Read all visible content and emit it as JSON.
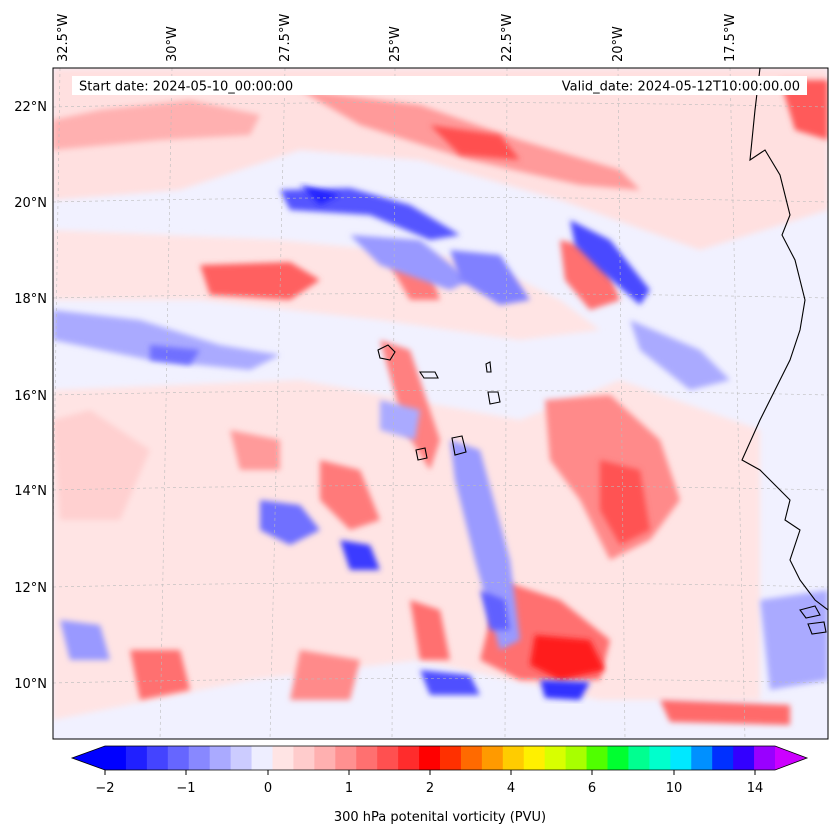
{
  "map": {
    "start_label": "Start date: 2024-05-10_00:00:00",
    "valid_label": "Valid_date: 2024-05-12T10:00:00.00",
    "lon_labels": [
      "32.5°W",
      "30°W",
      "27.5°W",
      "25°W",
      "22.5°W",
      "20°W",
      "17.5°W"
    ],
    "lat_labels": [
      "22°N",
      "20°N",
      "18°N",
      "16°N",
      "14°N",
      "12°N",
      "10°N"
    ]
  },
  "colorbar": {
    "title": "300 hPa potenital vorticity (PVU)",
    "tick_labels": [
      "−2",
      "−1",
      "0",
      "1",
      "2",
      "4",
      "6",
      "10",
      "14"
    ],
    "colors": [
      "#0000ff",
      "#2020ff",
      "#4444ff",
      "#6666ff",
      "#8888ff",
      "#aaaaff",
      "#ccccff",
      "#eeeeff",
      "#ffe4e4",
      "#ffcccc",
      "#ffb0b0",
      "#ff9090",
      "#ff7070",
      "#ff5050",
      "#ff2c2c",
      "#ff0000",
      "#ff3000",
      "#ff6a00",
      "#ff9a00",
      "#ffcc00",
      "#fff000",
      "#d8ff00",
      "#a8ff00",
      "#50ff00",
      "#00ff30",
      "#00ff90",
      "#00ffcc",
      "#00e8ff",
      "#0090ff",
      "#0030ff",
      "#3300ff",
      "#9900ff"
    ],
    "under_color": "#0000ff",
    "over_color": "#cc00ff"
  }
}
